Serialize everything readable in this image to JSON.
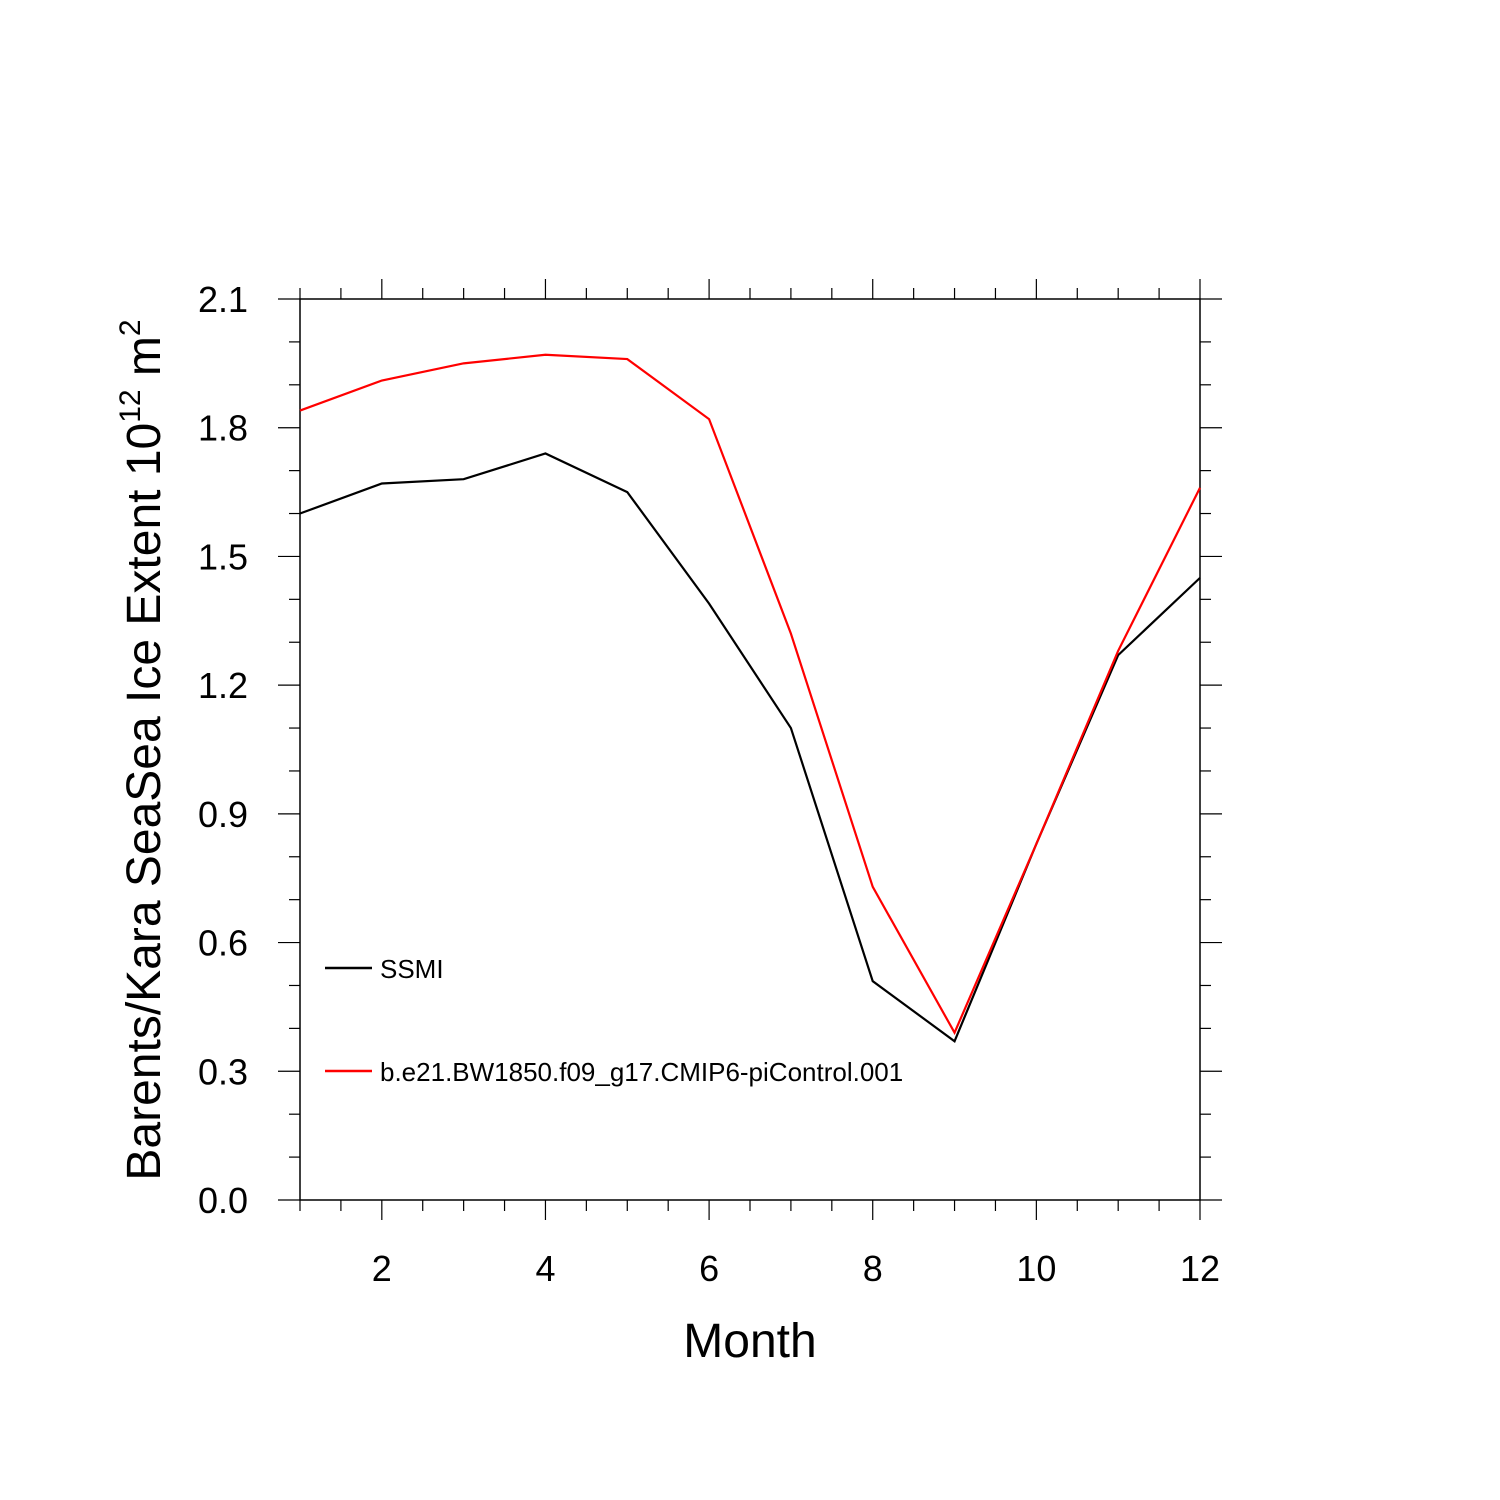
{
  "chart_data": {
    "type": "line",
    "title": "",
    "xlabel": "Month",
    "ylabel": {
      "main": "Barents/Kara SeaSea Ice Extent 10",
      "exponent": "12",
      "unit": " m",
      "unit_exponent": "2"
    },
    "xlim": [
      1,
      12
    ],
    "ylim": [
      0,
      2.1
    ],
    "x_ticks": [
      2,
      4,
      6,
      8,
      10,
      12
    ],
    "x_tick_labels": [
      "2",
      "4",
      "6",
      "8",
      "10",
      "12"
    ],
    "y_ticks": [
      0,
      0.3,
      0.6,
      0.9,
      1.2,
      1.5,
      1.8,
      2.1
    ],
    "y_tick_labels": [
      "0.0",
      "0.3",
      "0.6",
      "0.9",
      "1.2",
      "1.5",
      "1.8",
      "2.1"
    ],
    "grid": false,
    "legend_position": "lower-left",
    "x": [
      1,
      2,
      3,
      4,
      5,
      6,
      7,
      8,
      9,
      10,
      11,
      12
    ],
    "series": [
      {
        "name": "SSMI",
        "color": "#000000",
        "values": [
          1.6,
          1.67,
          1.68,
          1.74,
          1.65,
          1.39,
          1.1,
          0.51,
          0.37,
          0.83,
          1.27,
          1.45
        ]
      },
      {
        "name": "b.e21.BW1850.f09_g17.CMIP6-piControl.001",
        "color": "#ff0000",
        "values": [
          1.84,
          1.91,
          1.95,
          1.97,
          1.96,
          1.82,
          1.32,
          0.73,
          0.39,
          0.83,
          1.28,
          1.66
        ]
      }
    ]
  }
}
